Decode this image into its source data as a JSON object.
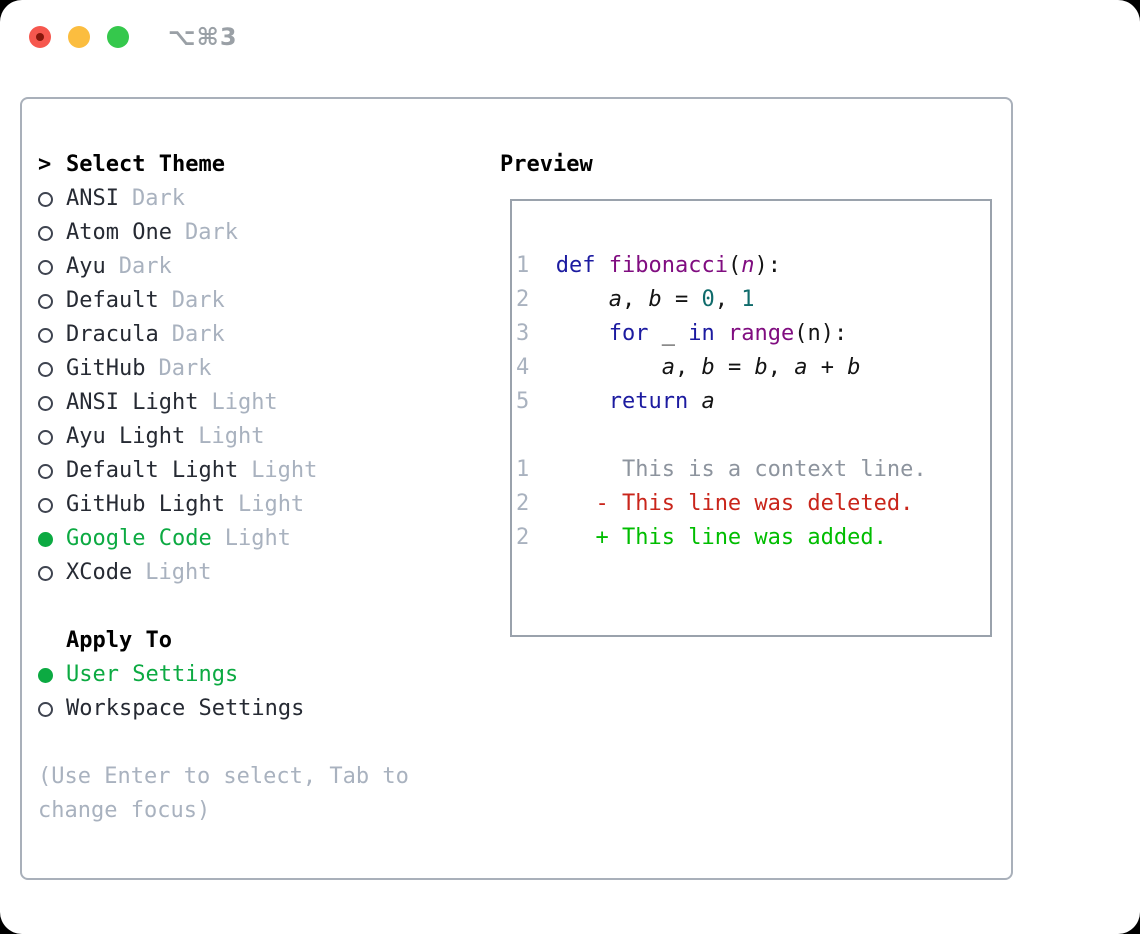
{
  "titlebar": {
    "title": "⌥⌘3"
  },
  "colors": {
    "accent-green": "#0caa42",
    "traffic-red": "#f6574e",
    "traffic-red-dot": "#87170c",
    "traffic-yellow": "#fbbd3f",
    "traffic-green": "#35c84c",
    "title-gray": "#9aa0a6",
    "text-dark": "#262a33",
    "text-gray": "#a9b2bf",
    "border-gray": "#a9b0ba",
    "kw": "#1c1ba0",
    "fn": "#800d80",
    "lit": "#0f6b6b",
    "ctx": "#8d949e",
    "del": "#c9251b",
    "add": "#00bd00",
    "num": "#a9b2bf"
  },
  "theme_panel": {
    "prompt": ">",
    "header": "Select Theme",
    "items": [
      {
        "name": "ANSI",
        "variant": "Dark",
        "selected": false
      },
      {
        "name": "Atom One",
        "variant": "Dark",
        "selected": false
      },
      {
        "name": "Ayu",
        "variant": "Dark",
        "selected": false
      },
      {
        "name": "Default",
        "variant": "Dark",
        "selected": false
      },
      {
        "name": "Dracula",
        "variant": "Dark",
        "selected": false
      },
      {
        "name": "GitHub",
        "variant": "Dark",
        "selected": false
      },
      {
        "name": "ANSI Light",
        "variant": "Light",
        "selected": false
      },
      {
        "name": "Ayu Light",
        "variant": "Light",
        "selected": false
      },
      {
        "name": "Default Light",
        "variant": "Light",
        "selected": false
      },
      {
        "name": "GitHub Light",
        "variant": "Light",
        "selected": false
      },
      {
        "name": "Google Code",
        "variant": "Light",
        "selected": true
      },
      {
        "name": "XCode",
        "variant": "Light",
        "selected": false
      }
    ]
  },
  "apply_panel": {
    "header": "Apply To",
    "items": [
      {
        "label": "User Settings",
        "selected": true
      },
      {
        "label": "Workspace Settings",
        "selected": false
      }
    ]
  },
  "hint": {
    "lines": [
      "(Use Enter to select, Tab to",
      "change focus)"
    ]
  },
  "preview": {
    "header": "Preview",
    "lines": [
      {
        "segments": []
      },
      {
        "segments": [
          {
            "t": "1",
            "c": "num"
          },
          {
            "t": "  ",
            "c": "plain"
          },
          {
            "t": "def",
            "c": "kw"
          },
          {
            "t": " ",
            "c": "plain"
          },
          {
            "t": "fibonacci",
            "c": "fn"
          },
          {
            "t": "(",
            "c": "plain"
          },
          {
            "t": "n",
            "c": "pvar"
          },
          {
            "t": "):",
            "c": "plain"
          }
        ]
      },
      {
        "segments": [
          {
            "t": "2",
            "c": "num"
          },
          {
            "t": "      ",
            "c": "plain"
          },
          {
            "t": "a",
            "c": "var"
          },
          {
            "t": ", ",
            "c": "plain"
          },
          {
            "t": "b",
            "c": "var"
          },
          {
            "t": " = ",
            "c": "plain"
          },
          {
            "t": "0",
            "c": "lit"
          },
          {
            "t": ", ",
            "c": "plain"
          },
          {
            "t": "1",
            "c": "lit"
          }
        ]
      },
      {
        "segments": [
          {
            "t": "3",
            "c": "num"
          },
          {
            "t": "      ",
            "c": "plain"
          },
          {
            "t": "for",
            "c": "kw"
          },
          {
            "t": " _ ",
            "c": "plain"
          },
          {
            "t": "in",
            "c": "kw"
          },
          {
            "t": " ",
            "c": "plain"
          },
          {
            "t": "range",
            "c": "fn"
          },
          {
            "t": "(n):",
            "c": "plain"
          }
        ]
      },
      {
        "segments": [
          {
            "t": "4",
            "c": "num"
          },
          {
            "t": "          ",
            "c": "plain"
          },
          {
            "t": "a",
            "c": "var"
          },
          {
            "t": ", ",
            "c": "plain"
          },
          {
            "t": "b",
            "c": "var"
          },
          {
            "t": " = ",
            "c": "plain"
          },
          {
            "t": "b",
            "c": "var"
          },
          {
            "t": ", ",
            "c": "plain"
          },
          {
            "t": "a",
            "c": "var"
          },
          {
            "t": " + ",
            "c": "plain"
          },
          {
            "t": "b",
            "c": "var"
          }
        ]
      },
      {
        "segments": [
          {
            "t": "5",
            "c": "num"
          },
          {
            "t": "      ",
            "c": "plain"
          },
          {
            "t": "return",
            "c": "kw"
          },
          {
            "t": " ",
            "c": "plain"
          },
          {
            "t": "a",
            "c": "var"
          }
        ]
      },
      {
        "segments": []
      },
      {
        "segments": [
          {
            "t": "1",
            "c": "num"
          },
          {
            "t": "       ",
            "c": "plain"
          },
          {
            "t": "This is a context line.",
            "c": "ctx"
          }
        ]
      },
      {
        "segments": [
          {
            "t": "2",
            "c": "num"
          },
          {
            "t": "     ",
            "c": "plain"
          },
          {
            "t": "- This line was deleted.",
            "c": "del"
          }
        ]
      },
      {
        "segments": [
          {
            "t": "2",
            "c": "num"
          },
          {
            "t": "     ",
            "c": "plain"
          },
          {
            "t": "+ This line was added.",
            "c": "add"
          }
        ]
      },
      {
        "segments": []
      }
    ]
  }
}
